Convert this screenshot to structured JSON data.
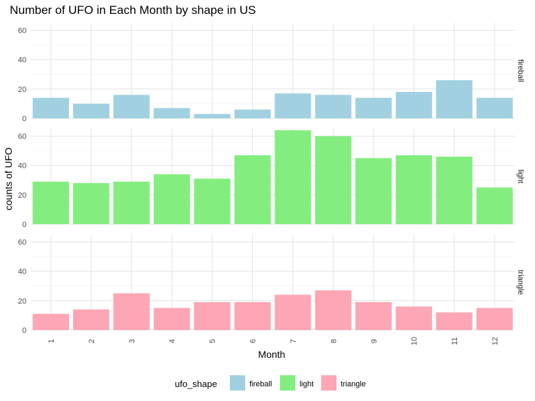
{
  "chart_data": {
    "type": "bar",
    "title": "Number of UFO in Each Month by shape in US",
    "xlabel": "Month",
    "ylabel": "counts of UFO",
    "categories": [
      "1",
      "2",
      "3",
      "4",
      "5",
      "6",
      "7",
      "8",
      "9",
      "10",
      "11",
      "12"
    ],
    "ylim": [
      0,
      65
    ],
    "yticks": [
      "0",
      "20",
      "40",
      "60"
    ],
    "grid": true,
    "legend": {
      "title": "ufo_shape",
      "placement": "bottom"
    },
    "facets": [
      {
        "name": "fireball",
        "color": "#a1d1e1",
        "values": [
          14,
          10,
          16,
          7,
          3,
          6,
          17,
          16,
          14,
          18,
          26,
          14
        ]
      },
      {
        "name": "light",
        "color": "#83ee7f",
        "values": [
          29,
          28,
          29,
          34,
          31,
          47,
          64,
          60,
          45,
          47,
          46,
          25
        ]
      },
      {
        "name": "triangle",
        "color": "#fda6b5",
        "values": [
          11,
          14,
          25,
          15,
          19,
          19,
          24,
          27,
          19,
          16,
          12,
          15
        ]
      }
    ]
  }
}
